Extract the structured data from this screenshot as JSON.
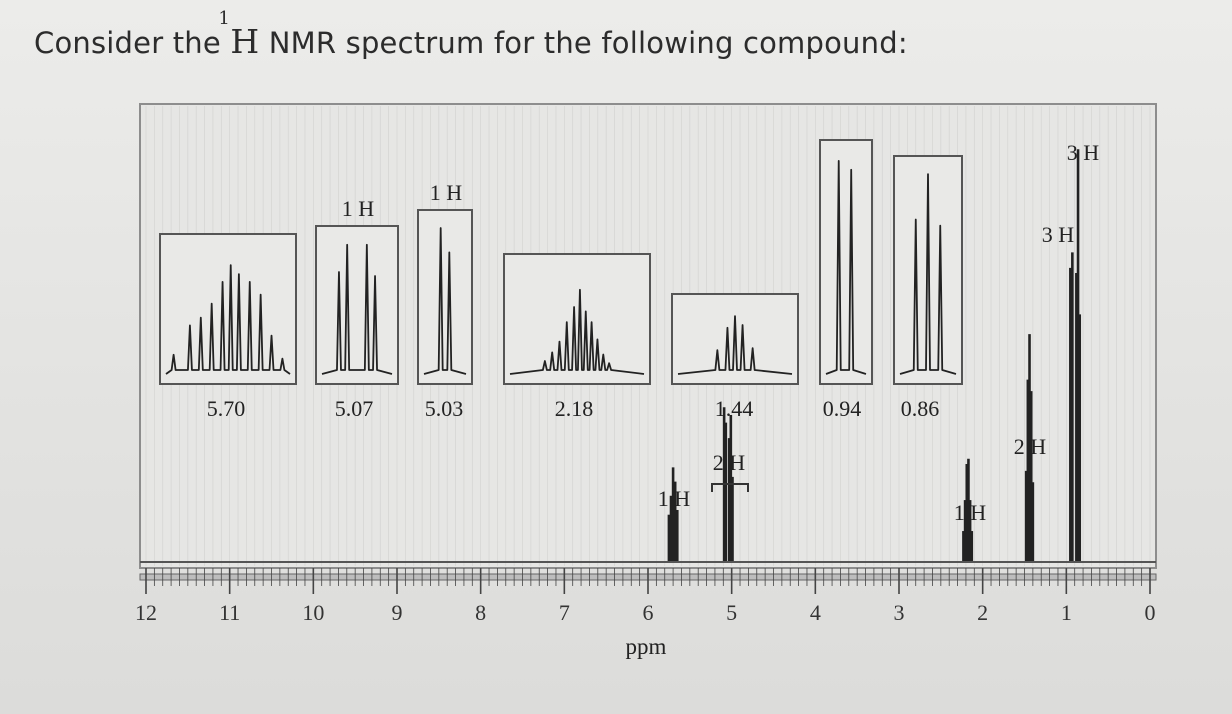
{
  "question": {
    "prefix": "Consider the",
    "mass_number": "1",
    "nucleus": "H",
    "suffix": "NMR spectrum for the following compound:"
  },
  "chart_data": {
    "type": "nmr_spectrum",
    "xlabel": "ppm",
    "xlim": [
      12,
      0
    ],
    "x_ticks": [
      "12",
      "11",
      "10",
      "9",
      "8",
      "7",
      "6",
      "5",
      "4",
      "3",
      "2",
      "1",
      "0"
    ],
    "peaks": [
      {
        "ppm": 5.7,
        "integration": "1 H",
        "multiplet": "complex",
        "relative_height": 0.22
      },
      {
        "ppm": 5.05,
        "integration": "2 H",
        "multiplet": "complex",
        "relative_height": 0.36,
        "group": true
      },
      {
        "ppm": 2.18,
        "integration": "1 H",
        "multiplet": "complex",
        "relative_height": 0.24
      },
      {
        "ppm": 1.44,
        "integration": "2 H",
        "multiplet": "quintet",
        "relative_height": 0.53
      },
      {
        "ppm": 0.94,
        "integration": "3 H",
        "multiplet": "doublet",
        "relative_height": 0.72
      },
      {
        "ppm": 0.86,
        "integration": "3 H",
        "multiplet": "triplet",
        "relative_height": 0.96
      }
    ],
    "insets": [
      {
        "label": "5.70",
        "integration": "",
        "shape": "complex-broad"
      },
      {
        "label": "5.07",
        "integration": "1 H",
        "shape": "doublet-of-doublets"
      },
      {
        "label": "5.03",
        "integration": "1 H",
        "shape": "tall-doublet"
      },
      {
        "label": "2.18",
        "integration": "",
        "shape": "complex-wide"
      },
      {
        "label": "1.44",
        "integration": "",
        "shape": "quintet"
      },
      {
        "label": "0.94",
        "integration": "",
        "shape": "doublet"
      },
      {
        "label": "0.86",
        "integration": "",
        "shape": "triplet"
      }
    ],
    "integration_labels": [
      {
        "text": "1 H",
        "ppm": 5.7
      },
      {
        "text": "2 H",
        "ppm": 5.05
      },
      {
        "text": "1 H",
        "ppm": 2.18
      },
      {
        "text": "2 H",
        "ppm": 1.44
      },
      {
        "text": "3 H",
        "ppm": 0.94
      },
      {
        "text": "3 H",
        "ppm": 0.86
      }
    ]
  }
}
